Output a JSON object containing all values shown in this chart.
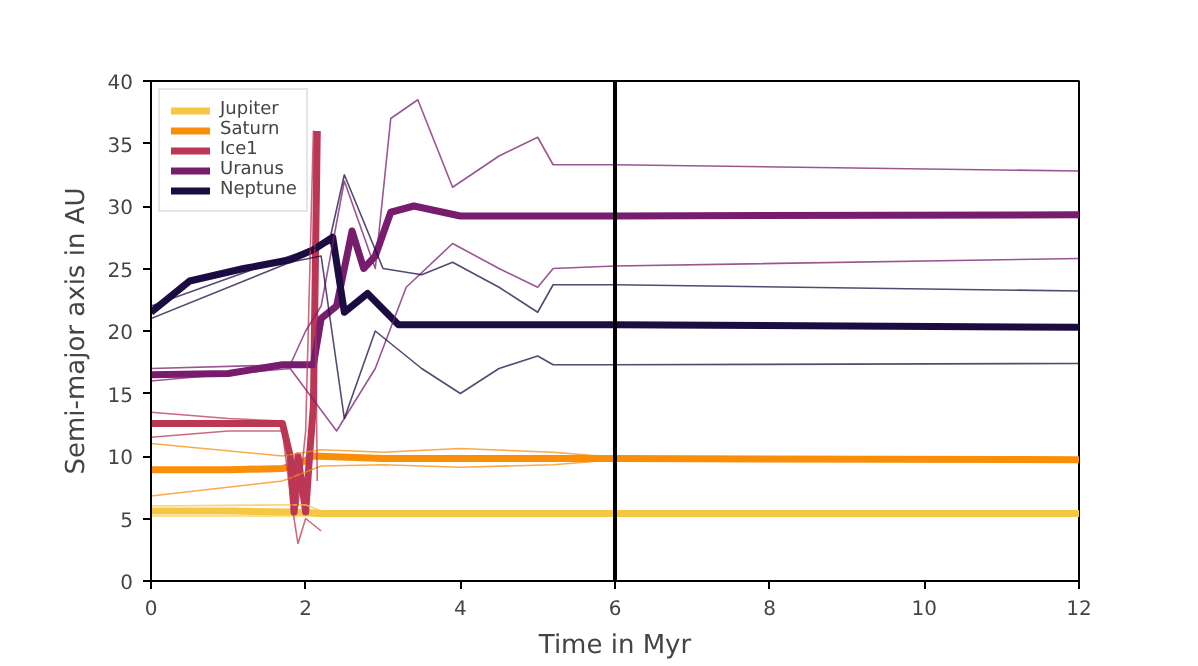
{
  "chart_data": {
    "type": "line",
    "xlabel": "Time in Myr",
    "ylabel": "Semi-major axis in AU",
    "xlim": [
      0,
      12
    ],
    "ylim": [
      0,
      40
    ],
    "xticks": [
      0,
      2,
      4,
      6,
      8,
      10,
      12
    ],
    "yticks": [
      0,
      5,
      10,
      15,
      20,
      25,
      30,
      35,
      40
    ],
    "grid": false,
    "legend": "top left",
    "line_style": "solid",
    "marker": "none",
    "ref_lines": [
      {
        "axis": "x",
        "value": 6,
        "color": "#000000"
      }
    ],
    "series": [
      {
        "name": "Jupiter",
        "color": "#f6c742",
        "x": [
          0,
          1,
          2,
          2.2,
          4,
          6,
          12
        ],
        "values": [
          5.6,
          5.6,
          5.5,
          5.4,
          5.4,
          5.4,
          5.4
        ]
      },
      {
        "name": "Saturn",
        "color": "#f98e09",
        "x": [
          0,
          1,
          1.7,
          1.9,
          2.1,
          3,
          5,
          6,
          12
        ],
        "values": [
          8.9,
          8.9,
          9,
          9.3,
          10,
          9.8,
          9.8,
          9.8,
          9.7
        ]
      },
      {
        "name": "Ice1",
        "color": "#bc3754",
        "x": [
          0,
          1,
          1.7,
          1.8,
          1.85,
          1.9,
          2.0,
          2.05,
          2.1,
          2.15
        ],
        "values": [
          12.6,
          12.6,
          12.6,
          10,
          5.5,
          10,
          5.5,
          10,
          14,
          36
        ]
      },
      {
        "name": "Uranus",
        "color": "#781c6d",
        "x": [
          0,
          1,
          1.7,
          2.1,
          2.2,
          2.4,
          2.6,
          2.75,
          2.9,
          3.1,
          3.4,
          4,
          5,
          6,
          12
        ],
        "values": [
          16.5,
          16.6,
          17.3,
          17.3,
          21,
          22,
          28,
          25,
          26,
          29.5,
          30,
          29.2,
          29.2,
          29.2,
          29.3
        ]
      },
      {
        "name": "Neptune",
        "color": "#1b0c41",
        "x": [
          0,
          0.5,
          1.2,
          1.8,
          2.1,
          2.35,
          2.5,
          2.8,
          3.2,
          4,
          6,
          12
        ],
        "values": [
          21.5,
          24,
          25,
          25.7,
          26.5,
          27.5,
          21.5,
          23,
          20.5,
          20.5,
          20.5,
          20.3
        ]
      },
      {
        "color": "#f6c742",
        "x": [
          0,
          2,
          2.2,
          6,
          12
        ],
        "values": [
          6,
          6.1,
          5.6,
          5.6,
          5.6
        ]
      },
      {
        "color": "#f6c742",
        "x": [
          0,
          2,
          2.2,
          6,
          12
        ],
        "values": [
          5.2,
          5.2,
          5.2,
          5.2,
          5.2
        ]
      },
      {
        "color": "#f98e09",
        "x": [
          0,
          1.7,
          2.2,
          3,
          4,
          5.2,
          6,
          12
        ],
        "values": [
          11,
          10,
          10.5,
          10.3,
          10.6,
          10.3,
          9.9,
          9.8
        ]
      },
      {
        "color": "#f98e09",
        "x": [
          0,
          1.7,
          2.2,
          3,
          4,
          5.2,
          6,
          12
        ],
        "values": [
          6.8,
          8,
          9.2,
          9.3,
          9.1,
          9.3,
          9.7,
          9.6
        ]
      },
      {
        "color": "#bc3754",
        "x": [
          0,
          1,
          1.7,
          1.9,
          2.0,
          2.1,
          2.15
        ],
        "values": [
          13.5,
          13,
          12.8,
          6,
          12,
          36,
          8
        ]
      },
      {
        "color": "#bc3754",
        "x": [
          0,
          1,
          1.7,
          1.8,
          1.9,
          2.0,
          2.2
        ],
        "values": [
          11.5,
          12,
          12,
          7,
          3,
          5,
          4
        ]
      },
      {
        "color": "#781c6d",
        "x": [
          0,
          1.8,
          2.0,
          2.2,
          2.5,
          2.9,
          3.1,
          3.45,
          3.9,
          4.5,
          5.0,
          5.2,
          6,
          12
        ],
        "values": [
          17,
          17.3,
          20,
          22,
          32,
          25,
          37,
          38.5,
          31.5,
          34,
          35.5,
          33.3,
          33.3,
          32.8
        ]
      },
      {
        "color": "#781c6d",
        "x": [
          0,
          1.8,
          2.4,
          2.9,
          3.3,
          3.9,
          4.5,
          5.0,
          5.2,
          6,
          12
        ],
        "values": [
          16,
          17,
          12,
          17,
          23.5,
          27,
          25,
          23.5,
          25,
          25.2,
          25.8
        ]
      },
      {
        "color": "#1b0c41",
        "x": [
          0,
          1.8,
          2.3,
          2.5,
          3.0,
          3.5,
          3.9,
          4.5,
          5.0,
          5.2,
          6,
          12
        ],
        "values": [
          22,
          26,
          27,
          32.5,
          25,
          24.5,
          25.5,
          23.5,
          21.5,
          23.7,
          23.7,
          23.2
        ]
      },
      {
        "color": "#1b0c41",
        "x": [
          0,
          1.8,
          2.2,
          2.5,
          2.9,
          3.5,
          4.0,
          4.5,
          5.0,
          5.2,
          6,
          12
        ],
        "values": [
          21,
          25.5,
          26,
          13,
          20,
          17,
          15,
          17,
          18,
          17.3,
          17.3,
          17.4
        ]
      }
    ]
  }
}
